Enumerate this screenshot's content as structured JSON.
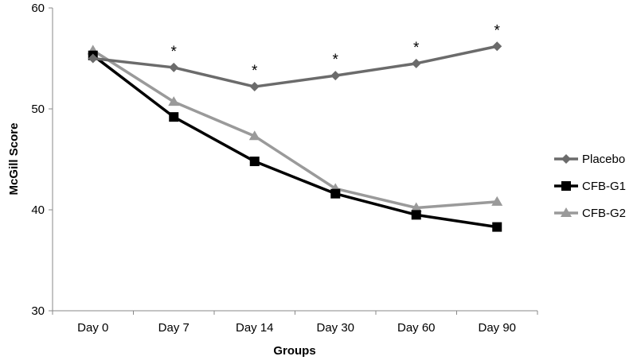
{
  "chart_data": {
    "type": "line",
    "xlabel": "Groups",
    "ylabel": "McGill Score",
    "ylim": [
      30,
      60
    ],
    "yticks": [
      30,
      40,
      50,
      60
    ],
    "categories": [
      "Day 0",
      "Day 7",
      "Day 14",
      "Day 30",
      "Day 60",
      "Day 90"
    ],
    "series": [
      {
        "name": "Placebo",
        "color": "#6b6b6b",
        "marker": "diamond",
        "values": [
          55.0,
          54.1,
          52.2,
          53.3,
          54.5,
          56.2
        ]
      },
      {
        "name": "CFB-G1",
        "color": "#000000",
        "marker": "square",
        "values": [
          55.3,
          49.2,
          44.8,
          41.6,
          39.5,
          38.3
        ]
      },
      {
        "name": "CFB-G2",
        "color": "#9a9a9a",
        "marker": "triangle",
        "values": [
          55.8,
          50.7,
          47.3,
          42.1,
          40.2,
          40.8
        ]
      }
    ],
    "annotations": [
      {
        "category": "Day 7",
        "text": "*"
      },
      {
        "category": "Day 14",
        "text": "*"
      },
      {
        "category": "Day 30",
        "text": "*"
      },
      {
        "category": "Day 60",
        "text": "*"
      },
      {
        "category": "Day 90",
        "text": "*"
      }
    ],
    "grid": false,
    "legend_position": "right"
  }
}
